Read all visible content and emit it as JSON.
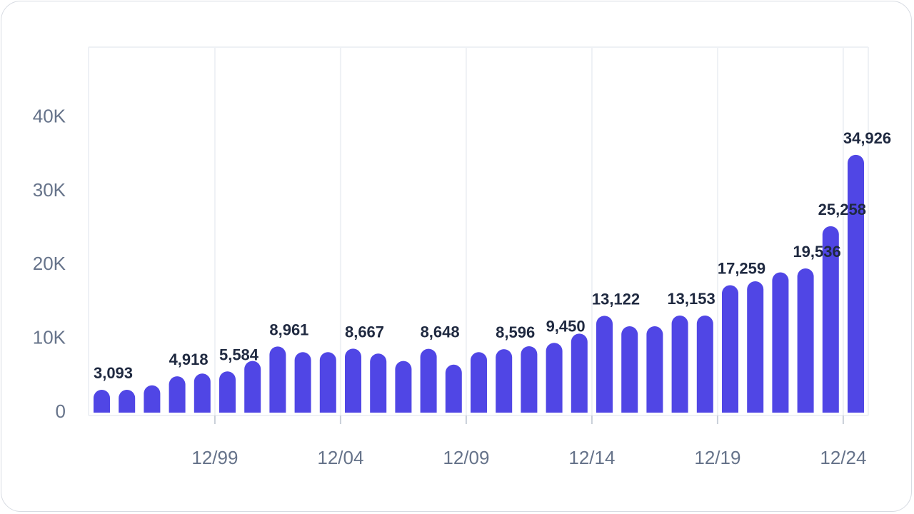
{
  "chart_data": {
    "type": "bar",
    "title": "",
    "xlabel": "",
    "ylabel": "",
    "ylim": [
      0,
      50000
    ],
    "y_ticks": [
      {
        "value": 0,
        "label": "0"
      },
      {
        "value": 10000,
        "label": "10K"
      },
      {
        "value": 20000,
        "label": "20K"
      },
      {
        "value": 30000,
        "label": "30K"
      },
      {
        "value": 40000,
        "label": "40K"
      }
    ],
    "x_ticks": [
      {
        "index": 4.5,
        "label": "12/99"
      },
      {
        "index": 9.5,
        "label": "12/04"
      },
      {
        "index": 14.5,
        "label": "12/09"
      },
      {
        "index": 19.5,
        "label": "12/14"
      },
      {
        "index": 24.5,
        "label": "12/19"
      },
      {
        "index": 29.5,
        "label": "12/24"
      }
    ],
    "color": "#5046e5",
    "values": [
      3093,
      3093,
      3700,
      4918,
      5300,
      5584,
      7000,
      8961,
      8200,
      8200,
      8667,
      8000,
      7000,
      8648,
      6500,
      8200,
      8596,
      9000,
      9450,
      10700,
      13122,
      11700,
      11700,
      13153,
      13153,
      17259,
      17800,
      19000,
      19536,
      25258,
      34926
    ],
    "labels": [
      "3,093",
      "",
      "",
      "4,918",
      "",
      "5,584",
      "",
      "8,961",
      "",
      "",
      "8,667",
      "",
      "",
      "8,648",
      "",
      "",
      "8,596",
      "",
      "9,450",
      "",
      "13,122",
      "",
      "",
      "13,153",
      "",
      "17,259",
      "",
      "",
      "19,536",
      "25,258",
      "34,926"
    ]
  }
}
